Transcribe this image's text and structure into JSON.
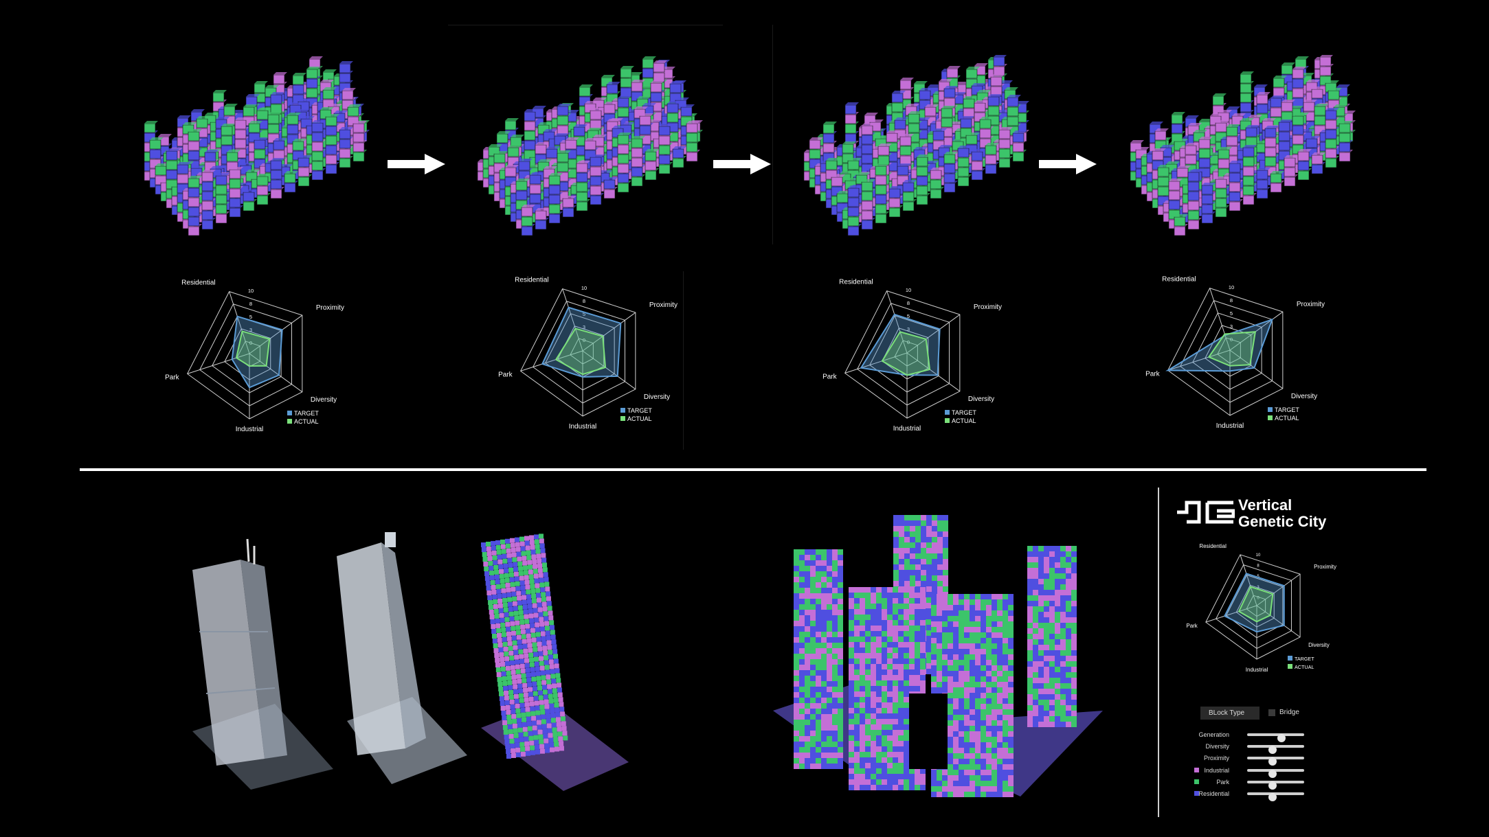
{
  "colors": {
    "target": "#5b9bd5",
    "actual": "#7be07b",
    "residential": "#4f4fe0",
    "park": "#3cc46a",
    "industrial": "#c46fd6",
    "background": "#000000"
  },
  "radar_axes": [
    "Residential",
    "Proximity",
    "Diversity",
    "Industrial",
    "Park"
  ],
  "radar_ticks": [
    "10",
    "8",
    "5",
    "3",
    "0"
  ],
  "legend": {
    "target": "TARGET",
    "actual": "ACTUAL"
  },
  "arrows": [
    "arrow-right-icon",
    "arrow-right-icon",
    "arrow-right-icon"
  ],
  "radars": [
    {
      "target": [
        6,
        6.2,
        5.6,
        5.2,
        2.8
      ],
      "actual": [
        3.6,
        3.8,
        3.2,
        1.9,
        2.1
      ]
    },
    {
      "target": [
        7,
        7.2,
        6.6,
        4.0,
        6.5
      ],
      "actual": [
        3.6,
        3.8,
        4.3,
        3.6,
        4.3
      ]
    },
    {
      "target": [
        6.2,
        6.2,
        5.8,
        3.4,
        7.4
      ],
      "actual": [
        3.4,
        3.6,
        4.3,
        3.4,
        4.0
      ]
    },
    {
      "target": [
        2.4,
        8.0,
        4.6,
        3.2,
        10.0
      ],
      "actual": [
        2.6,
        4.8,
        3.8,
        2.4,
        3.4
      ]
    }
  ],
  "panel": {
    "title_line1": "Vertical",
    "title_line2": "Genetic City",
    "radar": {
      "target": [
        6.3,
        6.3,
        6.3,
        4.9,
        6.3
      ],
      "actual": [
        3.7,
        3.7,
        3.1,
        3.0,
        3.5
      ]
    },
    "block_type_label": "BLock Type",
    "bridge_label": "Bridge",
    "sliders": [
      {
        "label": "Generation",
        "value": 0.6,
        "swatch": ""
      },
      {
        "label": "Diversity",
        "value": 0.45,
        "swatch": ""
      },
      {
        "label": "Proximity",
        "value": 0.45,
        "swatch": ""
      },
      {
        "label": "Industrial",
        "value": 0.45,
        "swatch": "#c46fd6"
      },
      {
        "label": "Park",
        "value": 0.45,
        "swatch": "#3cc46a"
      },
      {
        "label": "Residential",
        "value": 0.45,
        "swatch": "#4f4fe0"
      }
    ]
  }
}
